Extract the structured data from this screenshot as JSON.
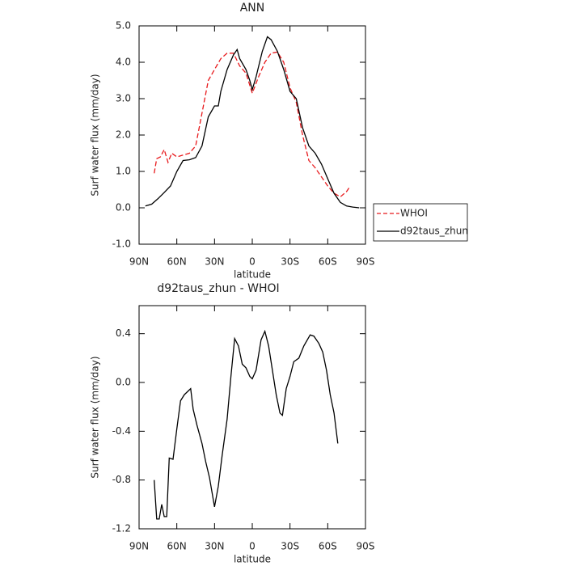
{
  "chart_data": [
    {
      "type": "line",
      "title": "ANN",
      "xlabel": "latitude",
      "ylabel": "Surf water flux (mm/day)",
      "xlim": [
        90,
        -90
      ],
      "ylim": [
        -1.0,
        5.0
      ],
      "xticks": [
        {
          "value": 90,
          "label": "90N"
        },
        {
          "value": 60,
          "label": "60N"
        },
        {
          "value": 30,
          "label": "30N"
        },
        0,
        {
          "value": -30,
          "label": "30S"
        },
        {
          "value": -60,
          "label": "60S"
        },
        {
          "value": -90,
          "label": "90S"
        }
      ],
      "yticks": [
        {
          "value": 5.0,
          "label": "5.0"
        },
        {
          "value": 4.0,
          "label": "4.0"
        },
        {
          "value": 3.0,
          "label": "3.0"
        },
        {
          "value": 2.0,
          "label": "2.0"
        },
        {
          "value": 1.0,
          "label": "1.0"
        },
        {
          "value": 0.0,
          "label": "0.0"
        },
        {
          "value": -1.0,
          "label": "-1.0"
        }
      ],
      "legend": "right",
      "series": [
        {
          "name": "WHOI",
          "color": "#e8191c",
          "style": "dashed",
          "x": [
            78,
            76,
            73,
            70,
            67,
            64,
            60,
            55,
            50,
            45,
            40,
            35,
            30,
            25,
            20,
            15,
            10,
            5,
            0,
            -5,
            -10,
            -15,
            -20,
            -25,
            -30,
            -35,
            -40,
            -45,
            -50,
            -55,
            -60,
            -65,
            -70,
            -75,
            -78
          ],
          "values": [
            0.95,
            1.35,
            1.4,
            1.6,
            1.25,
            1.5,
            1.4,
            1.45,
            1.5,
            1.7,
            2.6,
            3.5,
            3.8,
            4.1,
            4.25,
            4.25,
            3.9,
            3.7,
            3.15,
            3.6,
            4.0,
            4.25,
            4.28,
            4.0,
            3.3,
            2.9,
            2.0,
            1.3,
            1.1,
            0.85,
            0.6,
            0.4,
            0.3,
            0.45,
            0.6
          ]
        },
        {
          "name": "d92taus_zhun",
          "color": "#000000",
          "style": "solid",
          "x": [
            85,
            80,
            75,
            70,
            65,
            60,
            55,
            50,
            45,
            40,
            35,
            30,
            27,
            25,
            20,
            15,
            12,
            10,
            5,
            2,
            0,
            -3,
            -8,
            -12,
            -15,
            -20,
            -25,
            -30,
            -35,
            -40,
            -45,
            -50,
            -55,
            -60,
            -65,
            -70,
            -75,
            -80,
            -85
          ],
          "values": [
            0.05,
            0.1,
            0.25,
            0.42,
            0.6,
            1.0,
            1.3,
            1.32,
            1.38,
            1.7,
            2.5,
            2.8,
            2.8,
            3.2,
            3.8,
            4.2,
            4.35,
            4.1,
            3.8,
            3.5,
            3.25,
            3.6,
            4.3,
            4.7,
            4.62,
            4.3,
            3.8,
            3.2,
            3.0,
            2.2,
            1.7,
            1.5,
            1.2,
            0.8,
            0.4,
            0.15,
            0.05,
            0.02,
            0.0
          ]
        }
      ]
    },
    {
      "type": "line",
      "title": "d92taus_zhun - WHOI",
      "xlabel": "latitude",
      "ylabel": "Surf water flux (mm/day)",
      "xlim": [
        90,
        -90
      ],
      "ylim": [
        -1.2,
        0.63
      ],
      "xticks": [
        {
          "value": 90,
          "label": "90N"
        },
        {
          "value": 60,
          "label": "60N"
        },
        {
          "value": 30,
          "label": "30N"
        },
        0,
        {
          "value": -30,
          "label": "30S"
        },
        {
          "value": -60,
          "label": "60S"
        },
        {
          "value": -90,
          "label": "90S"
        }
      ],
      "yticks": [
        0.4,
        {
          "value": 0.0,
          "label": "0.0"
        },
        -0.4,
        -0.8,
        -1.2
      ],
      "series": [
        {
          "color": "#000000",
          "style": "solid",
          "x": [
            78,
            76,
            74,
            72,
            70,
            68,
            66,
            63,
            60,
            57,
            54,
            51,
            49,
            47,
            44,
            40,
            37,
            34,
            30,
            27,
            24,
            20,
            17,
            14,
            11,
            8,
            5,
            2,
            0,
            -3,
            -7,
            -10,
            -13,
            -16,
            -19,
            -22,
            -24,
            -27,
            -30,
            -33,
            -37,
            -41,
            -46,
            -49,
            -53,
            -56,
            -59,
            -62,
            -65,
            -68
          ],
          "values": [
            -0.8,
            -1.12,
            -1.12,
            -1.0,
            -1.1,
            -1.1,
            -0.62,
            -0.63,
            -0.38,
            -0.15,
            -0.1,
            -0.07,
            -0.05,
            -0.22,
            -0.35,
            -0.5,
            -0.65,
            -0.78,
            -1.02,
            -0.85,
            -0.6,
            -0.3,
            0.05,
            0.36,
            0.3,
            0.15,
            0.12,
            0.05,
            0.03,
            0.1,
            0.35,
            0.42,
            0.3,
            0.1,
            -0.1,
            -0.25,
            -0.27,
            -0.05,
            0.05,
            0.17,
            0.2,
            0.3,
            0.39,
            0.38,
            0.32,
            0.25,
            0.1,
            -0.1,
            -0.25,
            -0.5
          ]
        }
      ]
    }
  ]
}
